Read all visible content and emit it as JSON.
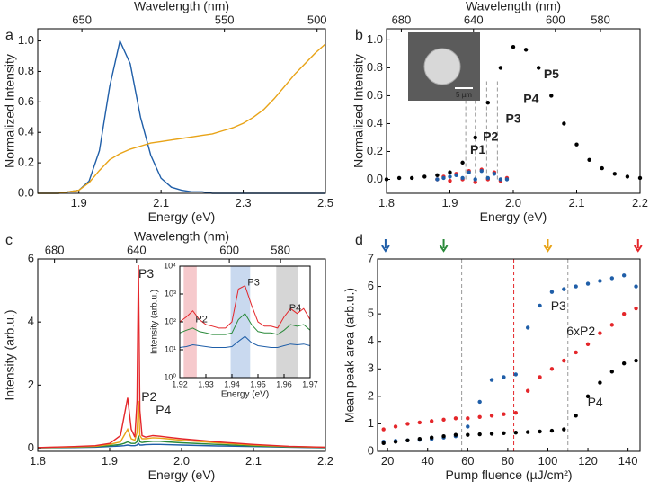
{
  "chart_data": [
    {
      "type": "line",
      "panel_label": "a",
      "xlabel": "Energy (eV)",
      "ylabel": "Normalized Intensity",
      "x2label": "Wavelength (nm)",
      "xlim": [
        1.8,
        2.5
      ],
      "xticks": [
        1.9,
        2.1,
        2.3,
        2.5
      ],
      "ylim": [
        0,
        1.08
      ],
      "yticks": [
        {
          "value": 0,
          "label": "0.0"
        },
        0.2,
        0.4,
        0.6,
        0.8,
        {
          "value": 1,
          "label": "1.0"
        }
      ],
      "x2ticks": [
        650,
        550,
        500
      ],
      "x": [
        1.8,
        1.825,
        1.85,
        1.875,
        1.9,
        1.925,
        1.95,
        1.975,
        2.0,
        2.025,
        2.05,
        2.075,
        2.1,
        2.125,
        2.15,
        2.175,
        2.2,
        2.225,
        2.25,
        2.275,
        2.3,
        2.325,
        2.35,
        2.375,
        2.4,
        2.425,
        2.45,
        2.475,
        2.5
      ],
      "series": [
        {
          "color": "#1f5ea8",
          "values": [
            0,
            0,
            0,
            0.01,
            0.02,
            0.08,
            0.28,
            0.7,
            1.0,
            0.85,
            0.5,
            0.25,
            0.1,
            0.04,
            0.02,
            0.01,
            0.01,
            0,
            0,
            0,
            0,
            0,
            0,
            0,
            0,
            0,
            0,
            0,
            0
          ]
        },
        {
          "color": "#e8a317",
          "values": [
            0,
            0,
            0,
            0.01,
            0.02,
            0.07,
            0.15,
            0.22,
            0.26,
            0.29,
            0.31,
            0.33,
            0.34,
            0.35,
            0.36,
            0.37,
            0.38,
            0.39,
            0.41,
            0.43,
            0.46,
            0.5,
            0.55,
            0.62,
            0.7,
            0.78,
            0.85,
            0.92,
            0.98
          ]
        }
      ]
    },
    {
      "type": "scatter",
      "panel_label": "b",
      "xlabel": "Energy (eV)",
      "ylabel": "Normalized Intensity",
      "x2label": "Wavelength (nm)",
      "xlim": [
        1.8,
        2.2
      ],
      "xticks": [
        1.8,
        1.9,
        {
          "value": 2,
          "label": "2.0"
        },
        2.1,
        2.2
      ],
      "ylim": [
        -0.1,
        1.08
      ],
      "yticks": [
        {
          "value": 0,
          "label": "0.0"
        },
        0.2,
        0.4,
        0.6,
        0.8,
        {
          "value": 1,
          "label": "1.0"
        }
      ],
      "x2ticks": [
        680,
        640,
        600,
        580
      ],
      "inset_image_label": "5 µm",
      "vlines": [
        {
          "x": 1.925,
          "color": "#999999"
        },
        {
          "x": 1.94,
          "color": "#999999"
        },
        {
          "x": 1.958,
          "color": "#999999"
        },
        {
          "x": 1.975,
          "color": "#999999"
        }
      ],
      "annotations": [
        {
          "text": "P1",
          "color": "#2a8a3a"
        },
        {
          "text": "P2",
          "color": "#e4262a"
        },
        {
          "text": "P3",
          "color": "#1f5ea8"
        },
        {
          "text": "P4",
          "color": "#1c2a55"
        },
        {
          "text": "P5",
          "color": "#e8a317"
        }
      ],
      "series": [
        {
          "color": "#000000",
          "x": [
            1.8,
            1.82,
            1.84,
            1.86,
            1.88,
            1.9,
            1.92,
            1.94,
            1.96,
            1.98,
            2.0,
            2.02,
            2.04,
            2.06,
            2.08,
            2.1,
            2.12,
            2.14,
            2.16,
            2.18,
            2.2
          ],
          "values": [
            0,
            0.01,
            0.01,
            0.02,
            0.03,
            0.05,
            0.12,
            0.3,
            0.55,
            0.8,
            0.95,
            0.93,
            0.8,
            0.6,
            0.4,
            0.25,
            0.14,
            0.08,
            0.04,
            0.02,
            0.01
          ]
        },
        {
          "color": "#e4262a",
          "x": [
            1.88,
            1.89,
            1.9,
            1.91,
            1.92,
            1.93,
            1.94,
            1.95,
            1.96,
            1.97,
            1.98,
            1.99
          ],
          "values": [
            0,
            0.02,
            -0.01,
            0.04,
            0,
            0.06,
            -0.02,
            0.07,
            0,
            0.05,
            -0.01,
            0.01
          ]
        },
        {
          "color": "#1f5ea8",
          "x": [
            1.88,
            1.89,
            1.9,
            1.91,
            1.92,
            1.93,
            1.94,
            1.95,
            1.96,
            1.97,
            1.98,
            1.99
          ],
          "values": [
            0,
            0.01,
            0.02,
            0.03,
            0.01,
            0.05,
            0,
            0.06,
            0.01,
            0.04,
            0,
            0
          ]
        }
      ]
    },
    {
      "type": "line",
      "panel_label": "c",
      "xlabel": "Energy (eV)",
      "ylabel": "Intensity (arb.u.)",
      "x2label": "Wavelength (nm)",
      "xlim": [
        1.8,
        2.2
      ],
      "xticks": [
        1.8,
        1.9,
        {
          "value": 2,
          "label": "2.0"
        },
        2.1,
        2.2
      ],
      "ylim": [
        -0.1,
        6
      ],
      "yticks": [
        0,
        2,
        4,
        6
      ],
      "x2ticks": [
        680,
        640,
        600,
        580
      ],
      "annotations": [
        {
          "text": "P3",
          "color": "#1f5ea8"
        },
        {
          "text": "P2",
          "color": "#e4262a"
        },
        {
          "text": "P4",
          "color": "#000000"
        }
      ],
      "x": [
        1.8,
        1.85,
        1.88,
        1.9,
        1.915,
        1.92,
        1.925,
        1.93,
        1.935,
        1.938,
        1.94,
        1.942,
        1.945,
        1.95,
        1.96,
        1.97,
        1.98,
        2.0,
        2.05,
        2.1,
        2.15,
        2.2
      ],
      "series": [
        {
          "color": "#1f5ea8",
          "values": [
            0.01,
            0.02,
            0.03,
            0.05,
            0.07,
            0.08,
            0.1,
            0.08,
            0.08,
            0.1,
            0.15,
            0.1,
            0.1,
            0.11,
            0.12,
            0.12,
            0.11,
            0.1,
            0.07,
            0.05,
            0.03,
            0.01
          ]
        },
        {
          "color": "#2a8a3a",
          "values": [
            0.01,
            0.03,
            0.05,
            0.08,
            0.12,
            0.15,
            0.2,
            0.15,
            0.15,
            0.2,
            0.4,
            0.2,
            0.18,
            0.2,
            0.22,
            0.22,
            0.2,
            0.17,
            0.12,
            0.07,
            0.04,
            0.02
          ]
        },
        {
          "color": "#e8a317",
          "values": [
            0.02,
            0.04,
            0.06,
            0.12,
            0.2,
            0.4,
            0.6,
            0.3,
            0.25,
            0.5,
            1.5,
            0.4,
            0.3,
            0.3,
            0.33,
            0.32,
            0.3,
            0.25,
            0.17,
            0.1,
            0.05,
            0.03
          ]
        },
        {
          "color": "#e4262a",
          "values": [
            0.02,
            0.05,
            0.08,
            0.15,
            0.4,
            1.0,
            1.6,
            0.6,
            0.35,
            1.5,
            5.8,
            1.2,
            0.4,
            0.35,
            0.4,
            0.38,
            0.35,
            0.3,
            0.2,
            0.12,
            0.06,
            0.03
          ]
        }
      ]
    },
    {
      "type": "line",
      "xlabel": "Energy (eV)",
      "ylabel": "Intensity (arb.u.)",
      "yscale": "log",
      "xlim": [
        1.92,
        1.97
      ],
      "xticks": [
        1.92,
        1.93,
        1.94,
        1.95,
        1.96,
        1.97
      ],
      "ylim": [
        1,
        10000
      ],
      "yticks": [
        {
          "value": 1,
          "label": "10⁰"
        },
        {
          "value": 10,
          "label": "10¹"
        },
        {
          "value": 100,
          "label": "10²"
        },
        {
          "value": 1000,
          "label": "10³"
        },
        {
          "value": 10000,
          "label": "10⁴"
        }
      ],
      "bands": [
        {
          "range": [
            1.9215,
            1.9265
          ],
          "color": "#f6c9cc"
        },
        {
          "range": [
            1.9395,
            1.947
          ],
          "color": "#c9d9ef"
        },
        {
          "range": [
            1.957,
            1.9655
          ],
          "color": "#d6d6d6"
        }
      ],
      "annotations": [
        {
          "text": "P2",
          "color": "#e4262a"
        },
        {
          "text": "P3",
          "color": "#1f5ea8"
        },
        {
          "text": "P4",
          "color": "#000000"
        }
      ],
      "x": [
        1.92,
        1.9225,
        1.925,
        1.9275,
        1.93,
        1.9325,
        1.935,
        1.9375,
        1.94,
        1.9425,
        1.945,
        1.9475,
        1.95,
        1.9525,
        1.955,
        1.9575,
        1.96,
        1.9625,
        1.965,
        1.9675,
        1.97
      ],
      "series": [
        {
          "color": "#1f5ea8",
          "values": [
            12,
            13,
            15,
            14,
            13,
            12,
            12,
            12,
            13,
            20,
            30,
            18,
            14,
            13,
            12,
            12,
            14,
            16,
            15,
            16,
            14
          ]
        },
        {
          "color": "#2a8a3a",
          "values": [
            40,
            50,
            60,
            45,
            40,
            35,
            35,
            35,
            40,
            120,
            200,
            80,
            45,
            40,
            40,
            35,
            50,
            80,
            70,
            80,
            50
          ]
        },
        {
          "color": "#e4262a",
          "values": [
            100,
            150,
            250,
            120,
            80,
            70,
            60,
            60,
            100,
            1500,
            2000,
            400,
            100,
            70,
            70,
            60,
            150,
            300,
            200,
            300,
            120
          ]
        }
      ]
    },
    {
      "type": "scatter",
      "panel_label": "d",
      "xlabel": "Pump fluence (µJ/cm²)",
      "ylabel": "Mean peak area (arb.u.)",
      "xlim": [
        15,
        146
      ],
      "xticks": [
        20,
        40,
        60,
        80,
        100,
        120,
        140
      ],
      "ylim": [
        0,
        7
      ],
      "yticks": [
        0,
        1,
        2,
        3,
        4,
        5,
        6,
        7
      ],
      "vlines": [
        {
          "x": 57,
          "color": "#999999"
        },
        {
          "x": 83,
          "color": "#e4262a"
        },
        {
          "x": 110,
          "color": "#999999"
        }
      ],
      "arrows": [
        {
          "x": 19,
          "color": "#1f5ea8"
        },
        {
          "x": 48,
          "color": "#2a8a3a"
        },
        {
          "x": 100,
          "color": "#e8a317"
        },
        {
          "x": 145,
          "color": "#e4262a"
        }
      ],
      "x": [
        18,
        24,
        30,
        36,
        42,
        48,
        54,
        60,
        66,
        72,
        78,
        84,
        90,
        96,
        102,
        108,
        114,
        120,
        126,
        132,
        138,
        144
      ],
      "series": [
        {
          "name": "P3",
          "color": "#1f5ea8",
          "values": [
            0.35,
            0.38,
            0.4,
            0.42,
            0.45,
            0.5,
            0.55,
            0.9,
            1.8,
            2.6,
            2.7,
            2.8,
            4.5,
            5.3,
            5.8,
            5.9,
            6.0,
            6.1,
            6.2,
            6.3,
            6.4,
            6.0
          ]
        },
        {
          "name": "6xP2",
          "color": "#e4262a",
          "values": [
            0.8,
            0.9,
            1.0,
            1.05,
            1.1,
            1.15,
            1.2,
            1.2,
            1.25,
            1.3,
            1.35,
            1.4,
            2.2,
            2.7,
            3.0,
            3.3,
            3.6,
            3.9,
            4.3,
            4.6,
            5.0,
            5.2
          ]
        },
        {
          "name": "P4",
          "color": "#000000",
          "values": [
            0.3,
            0.35,
            0.4,
            0.45,
            0.5,
            0.55,
            0.6,
            0.6,
            0.62,
            0.64,
            0.66,
            0.68,
            0.7,
            0.72,
            0.75,
            0.8,
            1.3,
            2.0,
            2.5,
            2.9,
            3.2,
            3.3
          ]
        }
      ]
    }
  ]
}
